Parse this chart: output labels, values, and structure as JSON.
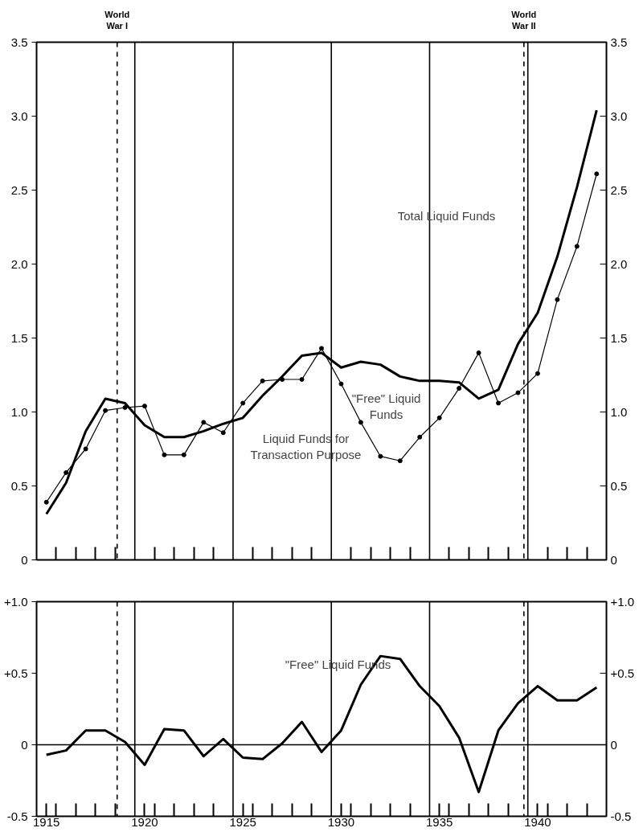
{
  "chart_data": [
    {
      "type": "line",
      "x": [
        1915,
        1916,
        1917,
        1918,
        1919,
        1920,
        1921,
        1922,
        1923,
        1924,
        1925,
        1926,
        1927,
        1928,
        1929,
        1930,
        1931,
        1932,
        1933,
        1934,
        1935,
        1936,
        1937,
        1938,
        1939,
        1940,
        1941,
        1942,
        1943
      ],
      "series": [
        {
          "color": "#000000",
          "marker": "none",
          "values": [
            0.31,
            0.52,
            0.87,
            1.09,
            1.06,
            0.91,
            0.83,
            0.83,
            0.87,
            0.92,
            0.96,
            1.11,
            1.24,
            1.38,
            1.4,
            1.3,
            1.34,
            1.32,
            1.24,
            1.21,
            1.21,
            1.2,
            1.09,
            1.15,
            1.46,
            1.67,
            2.05,
            2.52,
            3.04
          ]
        },
        {
          "color": "#000000",
          "marker": "circle",
          "values": [
            0.39,
            0.59,
            0.75,
            1.01,
            1.03,
            1.04,
            0.71,
            0.71,
            0.93,
            0.86,
            1.06,
            1.21,
            1.22,
            1.22,
            1.43,
            1.19,
            0.93,
            0.7,
            0.67,
            0.83,
            0.96,
            1.16,
            1.4,
            1.06,
            1.13,
            1.26,
            1.76,
            2.12,
            2.61
          ]
        }
      ],
      "xlim": [
        1914.5,
        1943.5
      ],
      "xticks": [
        {
          "value": 1915.5,
          "label": null
        },
        {
          "value": 1916.5,
          "label": null
        },
        {
          "value": 1917.5,
          "label": null
        },
        {
          "value": 1918.5,
          "label": null
        },
        {
          "value": 1920.5,
          "label": null
        },
        {
          "value": 1921.5,
          "label": null
        },
        {
          "value": 1922.5,
          "label": null
        },
        {
          "value": 1923.5,
          "label": null
        },
        {
          "value": 1925.5,
          "label": null
        },
        {
          "value": 1926.5,
          "label": null
        },
        {
          "value": 1927.5,
          "label": null
        },
        {
          "value": 1928.5,
          "label": null
        },
        {
          "value": 1930.5,
          "label": null
        },
        {
          "value": 1931.5,
          "label": null
        },
        {
          "value": 1932.5,
          "label": null
        },
        {
          "value": 1933.5,
          "label": null
        },
        {
          "value": 1935.5,
          "label": null
        },
        {
          "value": 1936.5,
          "label": null
        },
        {
          "value": 1937.5,
          "label": null
        },
        {
          "value": 1938.5,
          "label": null
        },
        {
          "value": 1940.5,
          "label": null
        },
        {
          "value": 1941.5,
          "label": null
        },
        {
          "value": 1942.5,
          "label": null
        }
      ],
      "ylim": [
        0,
        3.5
      ],
      "yticks": [
        0,
        0.5,
        {
          "value": 1,
          "label": "1.0"
        },
        1.5,
        {
          "value": 2,
          "label": "2.0"
        },
        2.5,
        {
          "value": 3,
          "label": "3.0"
        },
        3.5
      ],
      "y2lim": [
        0,
        3.5
      ],
      "y2ticks": [
        0,
        0.5,
        {
          "value": 1,
          "label": "1.0"
        },
        1.5,
        {
          "value": 2,
          "label": "2.0"
        },
        2.5,
        {
          "value": 3,
          "label": "3.0"
        },
        3.5
      ],
      "tick_labels": "y",
      "grid": false,
      "line_style": "solid",
      "ref_lines": [
        {
          "axis": "x",
          "value": 1918.6,
          "label": "World\nWar I",
          "line_style": "dashed"
        },
        {
          "axis": "x",
          "value": 1939.3,
          "label": "World\nWar II",
          "line_style": "dashed"
        },
        {
          "axis": "x",
          "value": 1919.5,
          "label": null
        },
        {
          "axis": "x",
          "value": 1924.5,
          "label": null
        },
        {
          "axis": "x",
          "value": 1929.5,
          "label": null
        },
        {
          "axis": "x",
          "value": 1934.5,
          "label": null
        },
        {
          "axis": "x",
          "value": 1939.5,
          "label": null
        }
      ],
      "annotations": [
        "Total Liquid Funds",
        "\"Free\" Liquid\nFunds",
        "Liquid Funds for\nTransaction Purpose"
      ]
    },
    {
      "type": "line",
      "x": [
        1915,
        1916,
        1917,
        1918,
        1919,
        1920,
        1921,
        1922,
        1923,
        1924,
        1925,
        1926,
        1927,
        1928,
        1929,
        1930,
        1931,
        1932,
        1933,
        1934,
        1935,
        1936,
        1937,
        1938,
        1939,
        1940,
        1941,
        1942,
        1943
      ],
      "series": [
        {
          "color": "#000000",
          "marker": "none",
          "values": [
            -0.07,
            -0.04,
            0.1,
            0.1,
            0.02,
            -0.14,
            0.11,
            0.1,
            -0.08,
            0.04,
            -0.09,
            -0.1,
            0.01,
            0.16,
            -0.05,
            0.1,
            0.42,
            0.62,
            0.6,
            0.41,
            0.27,
            0.05,
            -0.33,
            0.1,
            0.29,
            0.41,
            0.31,
            0.31,
            0.4
          ]
        }
      ],
      "xlim": [
        1914.5,
        1943.5
      ],
      "xticks": [
        1915,
        {
          "value": 1915.5,
          "label": null
        },
        {
          "value": 1916.5,
          "label": null
        },
        {
          "value": 1917.5,
          "label": null
        },
        {
          "value": 1918.5,
          "label": null
        },
        1920,
        {
          "value": 1920.5,
          "label": null
        },
        {
          "value": 1921.5,
          "label": null
        },
        {
          "value": 1922.5,
          "label": null
        },
        {
          "value": 1923.5,
          "label": null
        },
        1925,
        {
          "value": 1925.5,
          "label": null
        },
        {
          "value": 1926.5,
          "label": null
        },
        {
          "value": 1927.5,
          "label": null
        },
        {
          "value": 1928.5,
          "label": null
        },
        1930,
        {
          "value": 1930.5,
          "label": null
        },
        {
          "value": 1931.5,
          "label": null
        },
        {
          "value": 1932.5,
          "label": null
        },
        {
          "value": 1933.5,
          "label": null
        },
        1935,
        {
          "value": 1935.5,
          "label": null
        },
        {
          "value": 1936.5,
          "label": null
        },
        {
          "value": 1937.5,
          "label": null
        },
        {
          "value": 1938.5,
          "label": null
        },
        1940,
        {
          "value": 1940.5,
          "label": null
        },
        {
          "value": 1941.5,
          "label": null
        },
        {
          "value": 1942.5,
          "label": null
        }
      ],
      "ylim": [
        -0.5,
        1.0
      ],
      "yticks": [
        {
          "value": -0.5,
          "label": "-0.5"
        },
        0,
        {
          "value": 0.5,
          "label": "+0.5"
        },
        {
          "value": 1,
          "label": "+1.0"
        }
      ],
      "y2lim": [
        -0.5,
        1.0
      ],
      "y2ticks": [
        {
          "value": -0.5,
          "label": "-0.5"
        },
        0,
        {
          "value": 0.5,
          "label": "+0.5"
        },
        {
          "value": 1,
          "label": "+1.0"
        }
      ],
      "grid": false,
      "line_style": "solid",
      "ref_lines": [
        {
          "axis": "y",
          "value": 0,
          "label": null
        },
        {
          "axis": "x",
          "value": 1918.6,
          "label": null,
          "line_style": "dashed"
        },
        {
          "axis": "x",
          "value": 1939.3,
          "label": null,
          "line_style": "dashed"
        },
        {
          "axis": "x",
          "value": 1919.5,
          "label": null
        },
        {
          "axis": "x",
          "value": 1924.5,
          "label": null
        },
        {
          "axis": "x",
          "value": 1929.5,
          "label": null
        },
        {
          "axis": "x",
          "value": 1934.5,
          "label": null
        },
        {
          "axis": "x",
          "value": 1939.5,
          "label": null
        }
      ],
      "annotations": [
        "\"Free\" Liquid Funds"
      ]
    }
  ]
}
